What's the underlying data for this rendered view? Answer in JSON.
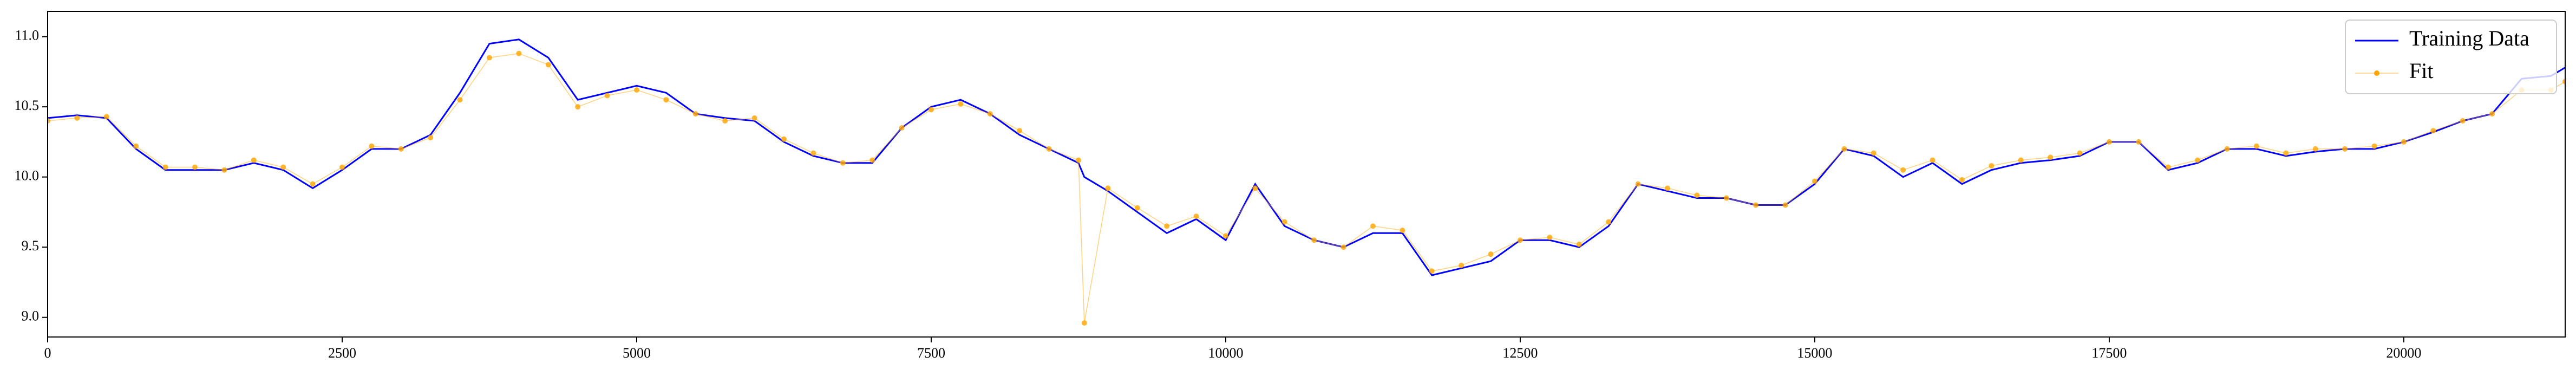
{
  "chart_data": {
    "type": "line",
    "x": [
      0,
      250,
      500,
      750,
      1000,
      1250,
      1500,
      1750,
      2000,
      2250,
      2500,
      2750,
      3000,
      3250,
      3500,
      3750,
      4000,
      4250,
      4500,
      4750,
      5000,
      5250,
      5500,
      5750,
      6000,
      6250,
      6500,
      6750,
      7000,
      7250,
      7500,
      7750,
      8000,
      8250,
      8500,
      8750,
      8800,
      9000,
      9250,
      9500,
      9750,
      10000,
      10250,
      10500,
      10750,
      11000,
      11250,
      11500,
      11750,
      12000,
      12250,
      12500,
      12750,
      13000,
      13250,
      13500,
      13750,
      14000,
      14250,
      14500,
      14750,
      15000,
      15250,
      15500,
      15750,
      16000,
      16250,
      16500,
      16750,
      17000,
      17250,
      17500,
      17750,
      18000,
      18250,
      18500,
      18750,
      19000,
      19250,
      19500,
      19750,
      20000,
      20250,
      20500,
      20750,
      21000,
      21250,
      21370
    ],
    "series": [
      {
        "name": "Training Data",
        "color": "#0000ff",
        "marker": false,
        "values": [
          10.42,
          10.44,
          10.42,
          10.2,
          10.05,
          10.05,
          10.05,
          10.1,
          10.05,
          9.92,
          10.05,
          10.2,
          10.2,
          10.3,
          10.6,
          10.95,
          10.98,
          10.85,
          10.55,
          10.6,
          10.65,
          10.6,
          10.45,
          10.42,
          10.4,
          10.25,
          10.15,
          10.1,
          10.1,
          10.35,
          10.5,
          10.55,
          10.45,
          10.3,
          10.2,
          10.1,
          10.0,
          9.9,
          9.75,
          9.6,
          9.7,
          9.55,
          9.95,
          9.65,
          9.55,
          9.5,
          9.6,
          9.6,
          9.3,
          9.35,
          9.4,
          9.55,
          9.55,
          9.5,
          9.65,
          9.95,
          9.9,
          9.85,
          9.85,
          9.8,
          9.8,
          9.95,
          10.2,
          10.15,
          10.0,
          10.1,
          9.95,
          10.05,
          10.1,
          10.12,
          10.15,
          10.25,
          10.25,
          10.05,
          10.1,
          10.2,
          10.2,
          10.15,
          10.18,
          10.2,
          10.2,
          10.25,
          10.32,
          10.4,
          10.45,
          10.7,
          10.72,
          10.78
        ]
      },
      {
        "name": "Fit",
        "color": "#ffa500",
        "marker": true,
        "values": [
          10.4,
          10.42,
          10.43,
          10.22,
          10.07,
          10.07,
          10.05,
          10.12,
          10.07,
          9.95,
          10.07,
          10.22,
          10.2,
          10.28,
          10.55,
          10.85,
          10.88,
          10.8,
          10.5,
          10.58,
          10.62,
          10.55,
          10.45,
          10.4,
          10.42,
          10.27,
          10.17,
          10.1,
          10.12,
          10.35,
          10.48,
          10.52,
          10.45,
          10.33,
          10.2,
          10.12,
          8.96,
          9.92,
          9.78,
          9.65,
          9.72,
          9.58,
          9.92,
          9.68,
          9.55,
          9.5,
          9.65,
          9.62,
          9.33,
          9.37,
          9.45,
          9.55,
          9.57,
          9.52,
          9.68,
          9.95,
          9.92,
          9.87,
          9.85,
          9.8,
          9.8,
          9.97,
          10.2,
          10.17,
          10.05,
          10.12,
          9.98,
          10.08,
          10.12,
          10.14,
          10.17,
          10.25,
          10.25,
          10.07,
          10.12,
          10.2,
          10.22,
          10.17,
          10.2,
          10.2,
          10.22,
          10.25,
          10.33,
          10.4,
          10.45,
          10.62,
          10.62,
          10.68
        ]
      }
    ],
    "xlim": [
      0,
      21370
    ],
    "ylim": [
      8.86,
      11.18
    ],
    "xticks": [
      0,
      2500,
      5000,
      7500,
      10000,
      12500,
      15000,
      17500,
      20000
    ],
    "yticks": [
      {
        "value": 9,
        "label": "9.0"
      },
      9.5,
      {
        "value": 10,
        "label": "10.0"
      },
      10.5,
      {
        "value": 11,
        "label": "11.0"
      }
    ],
    "legend": "upper right"
  }
}
